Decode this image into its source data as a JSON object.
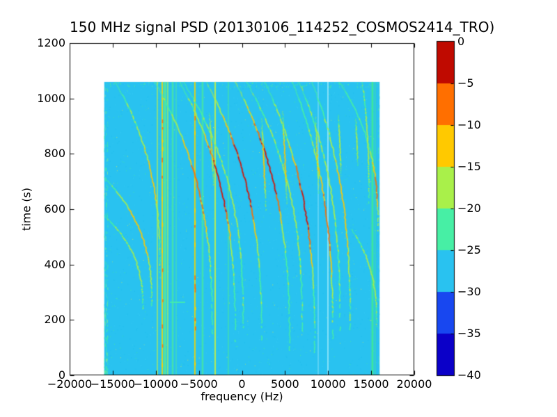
{
  "figure": {
    "background": "#ffffff",
    "frame_color": "#000000",
    "text_color": "#000000"
  },
  "chart_data": {
    "type": "heatmap",
    "subtype": "spectrogram-waterfall",
    "title": "150 MHz signal PSD (20130106_114252_COSMOS2414_TRO)",
    "xlabel": "frequency (Hz)",
    "ylabel": "time (s)",
    "xlim": [
      -20000,
      20000
    ],
    "ylim": [
      0,
      1200
    ],
    "grid": false,
    "xticks": {
      "values": [
        -20000,
        -15000,
        -10000,
        -5000,
        0,
        5000,
        10000,
        15000,
        20000
      ],
      "labels": [
        "−20000",
        "−15000",
        "−10000",
        "−5000",
        "0",
        "5000",
        "10000",
        "15000",
        "20000"
      ]
    },
    "yticks": {
      "values": [
        0,
        200,
        400,
        600,
        800,
        1000,
        1200
      ],
      "labels": [
        "0",
        "200",
        "400",
        "600",
        "800",
        "1000",
        "1200"
      ]
    },
    "colorbar": {
      "position": "right",
      "ticks": {
        "values": [
          0,
          -5,
          -10,
          -15,
          -20,
          -25,
          -30,
          -35,
          -40
        ],
        "labels": [
          "0",
          "−5",
          "−10",
          "−15",
          "−20",
          "−25",
          "−30",
          "−35",
          "−40"
        ]
      },
      "segment_colors_top_to_bottom": [
        "#bf0a00",
        "#ff6f00",
        "#ffc900",
        "#a9f04a",
        "#47efa5",
        "#29c2f0",
        "#1847f0",
        "#0b00c8"
      ]
    },
    "palette_db_stops": [
      {
        "min_db": -5,
        "color": "#d81000"
      },
      {
        "min_db": -10,
        "color": "#ff6f00"
      },
      {
        "min_db": -15,
        "color": "#ffc900"
      },
      {
        "min_db": -20,
        "color": "#a9f04a"
      },
      {
        "min_db": -25,
        "color": "#47efa5"
      },
      {
        "min_db": -30,
        "color": "#29c2f0"
      },
      {
        "min_db": -35,
        "color": "#1847f0"
      },
      {
        "min_db": -45,
        "color": "#0b00c8"
      }
    ],
    "data_extent": {
      "freq_hz": [
        -16000,
        16000
      ],
      "time_s": [
        0,
        1060
      ]
    },
    "background_level_db": -28,
    "background_color": "#29c2f0",
    "vertical_lines": [
      {
        "freq_hz": -9820,
        "color": "#cfe94a",
        "width": 1.2,
        "alpha": 0.85,
        "flecks": false
      },
      {
        "freq_hz": -9250,
        "color": "#ffd400",
        "width": 1.6,
        "alpha": 0.95,
        "flecks": true
      },
      {
        "freq_hz": -8930,
        "color": "#55e89a",
        "width": 2.6,
        "alpha": 0.9,
        "flecks": false
      },
      {
        "freq_hz": -8610,
        "color": "#b9ee4a",
        "width": 1.2,
        "alpha": 0.85,
        "flecks": false
      },
      {
        "freq_hz": -8040,
        "color": "#47e8a2",
        "width": 1.6,
        "alpha": 0.9,
        "flecks": false
      },
      {
        "freq_hz": -7640,
        "color": "#47e8a2",
        "width": 1.0,
        "alpha": 0.65,
        "flecks": false
      },
      {
        "freq_hz": -5460,
        "color": "#ffcc00",
        "width": 1.6,
        "alpha": 0.95,
        "flecks": true
      },
      {
        "freq_hz": -4570,
        "color": "#45e8a0",
        "width": 1.6,
        "alpha": 0.85,
        "flecks": false
      },
      {
        "freq_hz": -3110,
        "color": "#d8ee3a",
        "width": 1.6,
        "alpha": 0.9,
        "flecks": false
      },
      {
        "freq_hz": -1580,
        "color": "#45e8a0",
        "width": 1.1,
        "alpha": 0.7,
        "flecks": false
      },
      {
        "freq_hz": 15150,
        "color": "#3ae89a",
        "width": 2.2,
        "alpha": 0.95,
        "flecks": false
      },
      {
        "freq_hz": 15480,
        "color": "#3ae89a",
        "width": 1.0,
        "alpha": 0.5,
        "flecks": false
      }
    ],
    "pale_stripes": [
      {
        "freq_hz": 8850,
        "color": "#7adcf7",
        "width": 1.5,
        "alpha": 0.8
      },
      {
        "freq_hz": 9980,
        "color": "#8ee4f8",
        "width": 2.0,
        "alpha": 0.9
      }
    ],
    "doppler_traces": [
      {
        "f0": -14750,
        "t0": 1060,
        "f1": -9500,
        "t1": 350,
        "peak_db": -13,
        "core_pos": 0.5,
        "core_width": 0.25,
        "shape": 2.6
      },
      {
        "f0": -16000,
        "t0": 715,
        "f1": -10450,
        "t1": 250,
        "peak_db": -12,
        "core_pos": 0.45,
        "core_width": 0.3,
        "shape": 2.6
      },
      {
        "f0": -16000,
        "t0": 577,
        "f1": -11500,
        "t1": 238,
        "peak_db": -17,
        "core_pos": 0.5,
        "core_width": 0.3,
        "shape": 2.6
      },
      {
        "f0": -10140,
        "t0": 1060,
        "f1": -3430,
        "t1": 140,
        "peak_db": -8,
        "core_pos": 0.42,
        "core_width": 0.22,
        "shape": 2.6
      },
      {
        "f0": -7230,
        "t0": 1060,
        "f1": -770,
        "t1": 120,
        "peak_db": -1,
        "core_pos": 0.4,
        "core_width": 0.2,
        "shape": 2.6
      },
      {
        "f0": -4160,
        "t0": 1060,
        "f1": 2300,
        "t1": 100,
        "peak_db": -1,
        "core_pos": 0.36,
        "core_width": 0.22,
        "shape": 2.6
      },
      {
        "f0": -770,
        "t0": 1060,
        "f1": 5540,
        "t1": 88,
        "peak_db": -1,
        "core_pos": 0.32,
        "core_width": 0.2,
        "shape": 2.6
      },
      {
        "f0": 2630,
        "t0": 1060,
        "f1": 8440,
        "t1": 80,
        "peak_db": -2,
        "core_pos": 0.46,
        "core_width": 0.2,
        "shape": 2.6
      },
      {
        "f0": 5860,
        "t0": 1060,
        "f1": 10550,
        "t1": 113,
        "peak_db": -7,
        "core_pos": 0.54,
        "core_width": 0.22,
        "shape": 2.6
      },
      {
        "f0": 8120,
        "t0": 1060,
        "f1": 12570,
        "t1": 146,
        "peak_db": -12,
        "core_pos": 0.5,
        "core_width": 0.25,
        "shape": 2.6
      },
      {
        "f0": 11270,
        "t0": 1060,
        "f1": 15800,
        "t1": 520,
        "peak_db": -9,
        "core_pos": 0.72,
        "core_width": 0.2,
        "shape": 2.6
      },
      {
        "f0": 13940,
        "t0": 1060,
        "f1": 14750,
        "t1": 620,
        "peak_db": -18,
        "core_pos": 0.5,
        "core_width": 0.3,
        "shape": 2.6
      },
      {
        "f0": 12730,
        "t0": 527,
        "f1": 15640,
        "t1": 176,
        "peak_db": -16,
        "core_pos": 0.5,
        "core_width": 0.3,
        "shape": 2.6
      },
      {
        "f0": -6800,
        "t0": 1060,
        "f1": 150,
        "t1": 170,
        "peak_db": -18,
        "core_pos": 0.45,
        "core_width": 0.3,
        "shape": 2.6
      },
      {
        "f0": 500,
        "t0": 1060,
        "f1": 7000,
        "t1": 150,
        "peak_db": -18,
        "core_pos": 0.45,
        "core_width": 0.3,
        "shape": 2.6
      },
      {
        "f0": 6600,
        "t0": 1060,
        "f1": 11400,
        "t1": 160,
        "peak_db": -18,
        "core_pos": 0.45,
        "core_width": 0.3,
        "shape": 2.6
      },
      {
        "f0": -3760,
        "t0": 949,
        "f1": -3270,
        "t1": 683,
        "peak_db": -14,
        "core_pos": 0.5,
        "core_width": 0.35,
        "shape": 1.1
      },
      {
        "f0": 2300,
        "t0": 929,
        "f1": 2790,
        "t1": 590,
        "peak_db": -12,
        "core_pos": 0.5,
        "core_width": 0.35,
        "shape": 1.1
      },
      {
        "f0": 4730,
        "t0": 954,
        "f1": 5210,
        "t1": 615,
        "peak_db": -12,
        "core_pos": 0.5,
        "core_width": 0.35,
        "shape": 1.1
      },
      {
        "f0": 8530,
        "t0": 934,
        "f1": 8930,
        "t1": 653,
        "peak_db": -14,
        "core_pos": 0.5,
        "core_width": 0.35,
        "shape": 1.1
      },
      {
        "f0": 11190,
        "t0": 941,
        "f1": 11520,
        "t1": 716,
        "peak_db": -16,
        "core_pos": 0.5,
        "core_width": 0.35,
        "shape": 1.1
      },
      {
        "f0": 13210,
        "t0": 929,
        "f1": 13460,
        "t1": 753,
        "peak_db": -18,
        "core_pos": 0.5,
        "core_width": 0.35,
        "shape": 1.1
      }
    ],
    "horizontal_dash": {
      "f0": -8360,
      "f1": -6590,
      "t": 264,
      "color": "#45f0a8"
    },
    "noise": {
      "field_speckles": 2200,
      "top_band_speckles": 150,
      "left_edge_speckles": 210,
      "right_edge_speckles": 40,
      "speckle_colors": [
        "#35c9f3",
        "#1fbdee",
        "#45eca6",
        "#cdeb60"
      ]
    }
  }
}
